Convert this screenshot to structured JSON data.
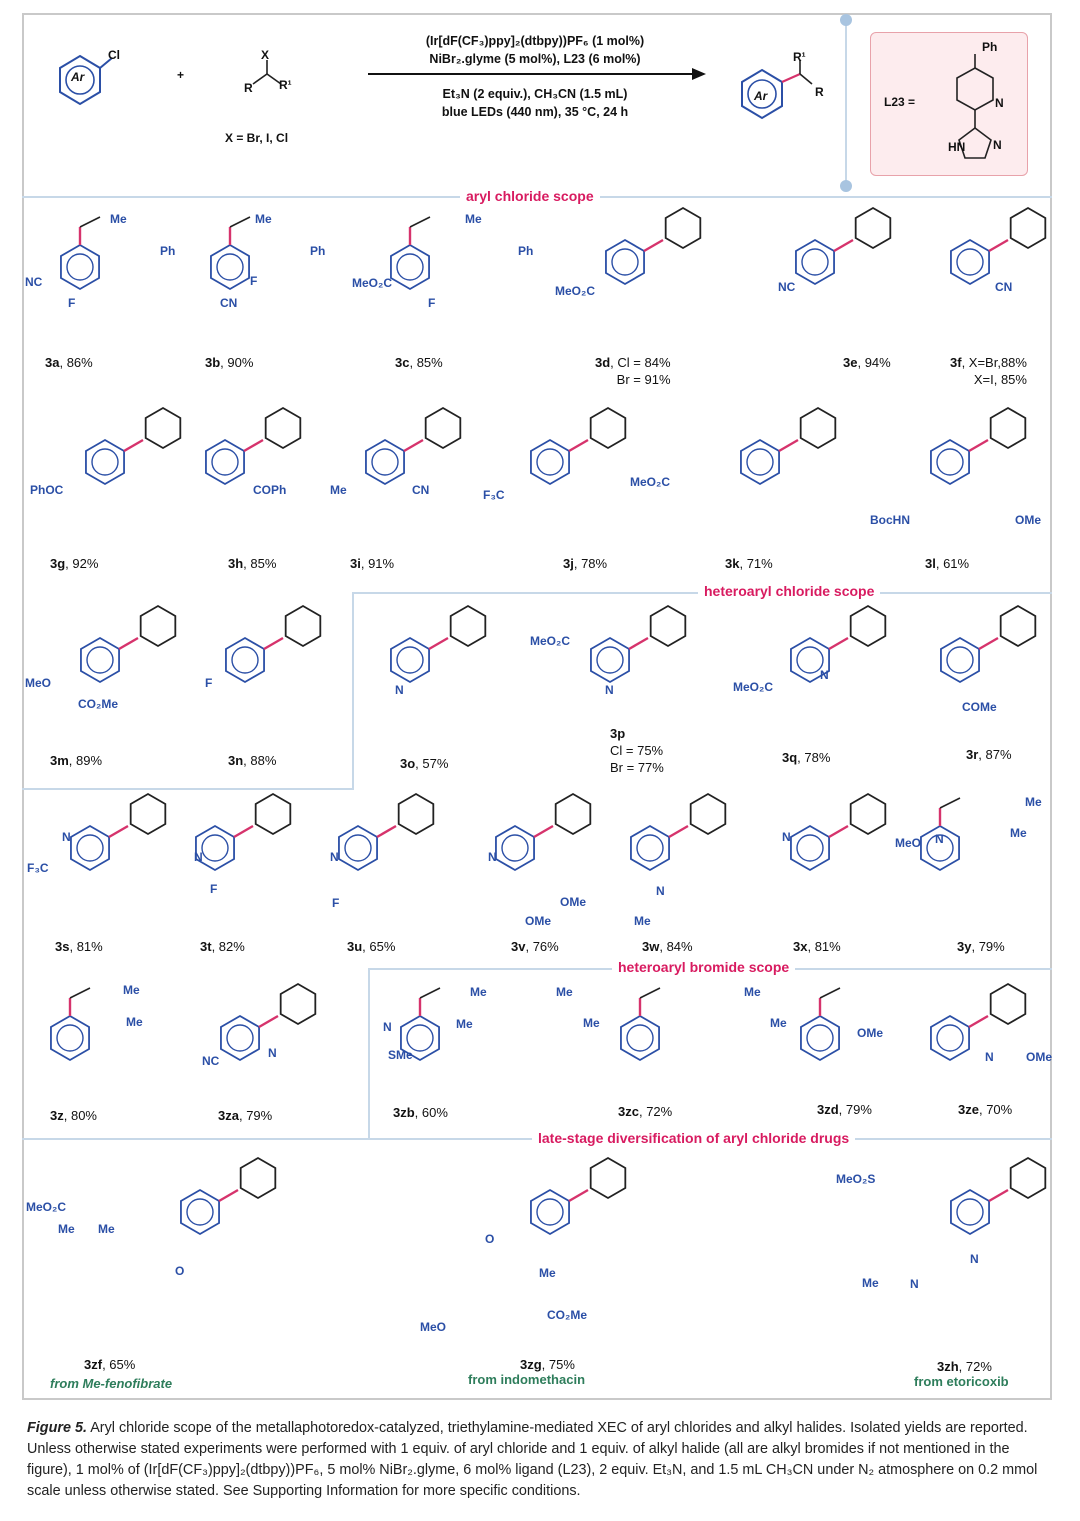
{
  "scheme": {
    "reactant_aryl": "Cl",
    "reactant_ar": "Ar",
    "plus": "+",
    "alkyl_x": "X",
    "alkyl_r": "R",
    "alkyl_r1": "R¹",
    "x_def": "X = Br, I, Cl",
    "cond1": "(Ir[dF(CF₃)ppy]₂(dtbpy))PF₆ (1 mol%)",
    "cond2": "NiBr₂.glyme (5 mol%), L23 (6 mol%)",
    "cond3": "Et₃N (2 equiv.), CH₃CN (1.5 mL)",
    "cond4": "blue LEDs (440 nm), 35 °C, 24 h",
    "product_ar": "Ar",
    "product_r": "R",
    "product_r1": "R¹",
    "l23_label": "L23 =",
    "l23_ph": "Ph",
    "l23_n": "N",
    "l23_hn": "HN",
    "l23_n2": "N"
  },
  "sections": {
    "aryl": "aryl chloride scope",
    "heteroaryl_cl": "heteroaryl chloride scope",
    "heteroaryl_br": "heteroaryl bromide scope",
    "late": "late-stage diversification of aryl chloride drugs"
  },
  "compounds": [
    {
      "id": "3a",
      "yield": ", 86%"
    },
    {
      "id": "3b",
      "yield": ", 90%"
    },
    {
      "id": "3c",
      "yield": ", 85%"
    },
    {
      "id": "3d",
      "yield": ", Cl = 84%",
      "yield2": "Br = 91%"
    },
    {
      "id": "3e",
      "yield": ", 94%"
    },
    {
      "id": "3f",
      "yield": ", X=Br,88%",
      "yield2": "X=I, 85%"
    },
    {
      "id": "3g",
      "yield": ", 92%"
    },
    {
      "id": "3h",
      "yield": ", 85%"
    },
    {
      "id": "3i",
      "yield": ", 91%"
    },
    {
      "id": "3j",
      "yield": ", 78%"
    },
    {
      "id": "3k",
      "yield": ", 71%"
    },
    {
      "id": "3l",
      "yield": ", 61%"
    },
    {
      "id": "3m",
      "yield": ", 89%"
    },
    {
      "id": "3n",
      "yield": ", 88%"
    },
    {
      "id": "3o",
      "yield": ", 57%"
    },
    {
      "id": "3p",
      "yield": "Cl = 75%",
      "yield2": "Br = 77%"
    },
    {
      "id": "3q",
      "yield": ", 78%"
    },
    {
      "id": "3r",
      "yield": ", 87%"
    },
    {
      "id": "3s",
      "yield": ", 81%"
    },
    {
      "id": "3t",
      "yield": ", 82%"
    },
    {
      "id": "3u",
      "yield": ", 65%"
    },
    {
      "id": "3v",
      "yield": ", 76%"
    },
    {
      "id": "3w",
      "yield": ", 84%"
    },
    {
      "id": "3x",
      "yield": ", 81%"
    },
    {
      "id": "3y",
      "yield": ", 79%"
    },
    {
      "id": "3z",
      "yield": ", 80%"
    },
    {
      "id": "3za",
      "yield": ", 79%"
    },
    {
      "id": "3zb",
      "yield": ", 60%"
    },
    {
      "id": "3zc",
      "yield": ", 72%"
    },
    {
      "id": "3zd",
      "yield": ", 79%"
    },
    {
      "id": "3ze",
      "yield": ", 70%"
    },
    {
      "id": "3zf",
      "yield": ", 65%"
    },
    {
      "id": "3zg",
      "yield": ", 75%"
    },
    {
      "id": "3zh",
      "yield": ", 72%"
    }
  ],
  "drug_sources": {
    "zf": "from Me-fenofibrate",
    "zg": "from indomethacin",
    "zh": "from etoricoxib"
  },
  "substituents": {
    "me": "Me",
    "ph": "Ph",
    "nc": "NC",
    "f": "F",
    "cn": "CN",
    "meo2c": "MeO₂C",
    "phoc": "PhOC",
    "coph": "COPh",
    "f3c": "F₃C",
    "n": "N",
    "meo": "MeO",
    "co2me": "CO₂Me",
    "come": "COMe",
    "ome": "OMe",
    "sme": "SMe",
    "bochn": "BocHN",
    "o": "O",
    "h": "H",
    "s": "S",
    "meo2s": "MeO₂S",
    "cf3": "F₃C"
  },
  "caption": {
    "label": "Figure 5.",
    "text": " Aryl chloride scope of the metallaphotoredox-catalyzed, triethylamine-mediated XEC of aryl chlorides and alkyl halides. Isolated yields are reported. Unless otherwise stated experiments were performed with 1 equiv. of aryl chloride and 1 equiv. of alkyl halide (all are alkyl bromides if not mentioned in the figure), 1 mol% of (Ir[dF(CF₃)ppy]₂(dtbpy))PF₆, 5 mol% NiBr₂.glyme, 6 mol% ligand (L23), 2 equiv. Et₃N, and 1.5 mL CH₃CN under N₂ atmosphere on 0.2 mmol scale unless otherwise stated. See Supporting Information for more specific conditions."
  },
  "colors": {
    "ring": "#2b4fa6",
    "bond": "#d6336c",
    "frame": "#c9c9c9",
    "divider": "#c7d8e8",
    "section": "#d81b60",
    "source": "#2e7d5b",
    "l23_bg": "#fdecee"
  }
}
